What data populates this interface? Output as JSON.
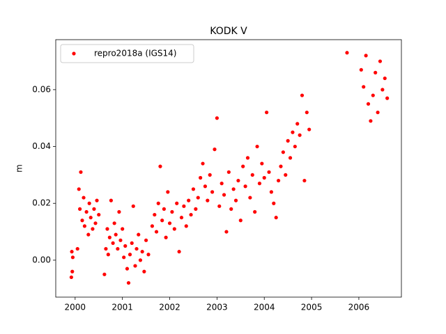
{
  "chart_data": {
    "type": "scatter",
    "title": "KODK V",
    "ylabel": "m",
    "legend": "upper left",
    "xlim": [
      1999.59,
      2006.9
    ],
    "xticks": [
      2000,
      2001,
      2002,
      2003,
      2004,
      2005,
      2006
    ],
    "ylim": [
      -0.013,
      0.0776
    ],
    "yticks": [
      {
        "value": 0,
        "label": "0.00"
      },
      {
        "value": 0.02,
        "label": "0.02"
      },
      {
        "value": 0.04,
        "label": "0.04"
      },
      {
        "value": 0.06,
        "label": "0.06"
      }
    ],
    "x": [
      1999.92,
      1999.93,
      1999.94,
      1999.95,
      2000.05,
      2000.08,
      2000.1,
      2000.12,
      2000.15,
      2000.18,
      2000.2,
      2000.24,
      2000.28,
      2000.3,
      2000.33,
      2000.37,
      2000.4,
      2000.43,
      2000.46,
      2000.5,
      2000.62,
      2000.65,
      2000.68,
      2000.7,
      2000.73,
      2000.76,
      2000.8,
      2000.83,
      2000.86,
      2000.9,
      2000.93,
      2000.96,
      2001.0,
      2001.03,
      2001.06,
      2001.1,
      2001.13,
      2001.16,
      2001.2,
      2001.23,
      2001.27,
      2001.3,
      2001.34,
      2001.38,
      2001.42,
      2001.46,
      2001.5,
      2001.55,
      2001.63,
      2001.68,
      2001.72,
      2001.76,
      2001.8,
      2001.84,
      2001.88,
      2001.92,
      2001.96,
      2002.0,
      2002.05,
      2002.1,
      2002.15,
      2002.2,
      2002.25,
      2002.3,
      2002.35,
      2002.4,
      2002.45,
      2002.5,
      2002.55,
      2002.6,
      2002.65,
      2002.7,
      2002.75,
      2002.8,
      2002.85,
      2002.9,
      2002.95,
      2003.0,
      2003.05,
      2003.1,
      2003.15,
      2003.2,
      2003.25,
      2003.3,
      2003.35,
      2003.4,
      2003.45,
      2003.5,
      2003.55,
      2003.6,
      2003.65,
      2003.7,
      2003.75,
      2003.8,
      2003.85,
      2003.9,
      2003.95,
      2004.0,
      2004.05,
      2004.1,
      2004.15,
      2004.2,
      2004.25,
      2004.3,
      2004.35,
      2004.4,
      2004.45,
      2004.5,
      2004.55,
      2004.6,
      2004.65,
      2004.7,
      2004.75,
      2004.8,
      2004.85,
      2004.9,
      2004.95,
      2005.75,
      2006.05,
      2006.1,
      2006.15,
      2006.2,
      2006.25,
      2006.3,
      2006.35,
      2006.4,
      2006.45,
      2006.5,
      2006.55,
      2006.6
    ],
    "series": [
      {
        "name": "repro2018a (IGS14)",
        "color": "#ff0000",
        "values": [
          -0.006,
          0.003,
          -0.004,
          0.001,
          0.004,
          0.025,
          0.018,
          0.031,
          0.014,
          0.022,
          0.012,
          0.017,
          0.009,
          0.02,
          0.015,
          0.011,
          0.018,
          0.013,
          0.021,
          0.016,
          -0.005,
          0.004,
          0.011,
          0.002,
          0.008,
          0.021,
          0.006,
          0.013,
          0.009,
          0.004,
          0.017,
          0.007,
          0.011,
          0.001,
          0.005,
          -0.003,
          -0.008,
          0.002,
          0.006,
          0.019,
          -0.002,
          0.004,
          0.009,
          0.0,
          0.003,
          -0.004,
          0.007,
          0.002,
          0.012,
          0.016,
          0.01,
          0.02,
          0.033,
          0.014,
          0.018,
          0.008,
          0.024,
          0.013,
          0.017,
          0.011,
          0.02,
          0.003,
          0.015,
          0.019,
          0.012,
          0.021,
          0.016,
          0.025,
          0.018,
          0.022,
          0.029,
          0.034,
          0.026,
          0.021,
          0.03,
          0.024,
          0.039,
          0.05,
          0.019,
          0.027,
          0.023,
          0.01,
          0.031,
          0.018,
          0.025,
          0.021,
          0.028,
          0.014,
          0.033,
          0.026,
          0.036,
          0.022,
          0.03,
          0.017,
          0.04,
          0.027,
          0.034,
          0.029,
          0.052,
          0.031,
          0.024,
          0.02,
          0.015,
          0.028,
          0.033,
          0.038,
          0.03,
          0.042,
          0.036,
          0.045,
          0.04,
          0.048,
          0.044,
          0.058,
          0.028,
          0.052,
          0.046,
          0.073,
          0.067,
          0.061,
          0.072,
          0.055,
          0.049,
          0.058,
          0.066,
          0.052,
          0.07,
          0.06,
          0.064,
          0.057
        ]
      }
    ]
  }
}
